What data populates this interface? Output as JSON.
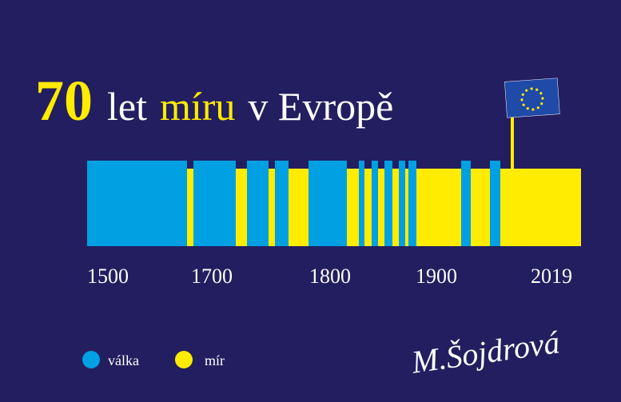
{
  "title": {
    "number": "70",
    "word1": "let",
    "word2": "míru",
    "word3": "v Evropě"
  },
  "axis_labels": [
    "1500",
    "1700",
    "1800",
    "1900",
    "2019"
  ],
  "legend": {
    "war": "válka",
    "peace": "mír"
  },
  "signature": "M.Šojdrová"
}
